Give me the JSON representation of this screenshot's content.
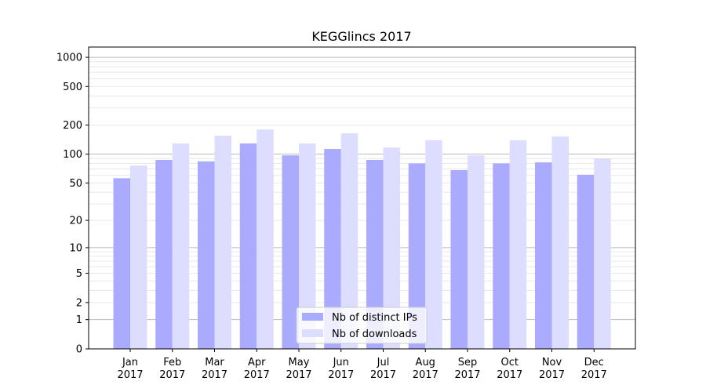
{
  "chart_data": {
    "type": "bar",
    "title": "KEGGlincs 2017",
    "xlabel": "",
    "ylabel": "",
    "y_scale": "log(1+y)",
    "ylim": [
      0,
      1275
    ],
    "y_ticks": [
      0,
      1,
      2,
      5,
      10,
      20,
      50,
      100,
      200,
      500,
      1000
    ],
    "grid": true,
    "legend_position": "bottom-center",
    "categories": [
      "Jan\n2017",
      "Feb\n2017",
      "Mar\n2017",
      "Apr\n2017",
      "May\n2017",
      "Jun\n2017",
      "Jul\n2017",
      "Aug\n2017",
      "Sep\n2017",
      "Oct\n2017",
      "Nov\n2017",
      "Dec\n2017"
    ],
    "category_labels": [
      [
        "Jan",
        "2017"
      ],
      [
        "Feb",
        "2017"
      ],
      [
        "Mar",
        "2017"
      ],
      [
        "Apr",
        "2017"
      ],
      [
        "May",
        "2017"
      ],
      [
        "Jun",
        "2017"
      ],
      [
        "Jul",
        "2017"
      ],
      [
        "Aug",
        "2017"
      ],
      [
        "Sep",
        "2017"
      ],
      [
        "Oct",
        "2017"
      ],
      [
        "Nov",
        "2017"
      ],
      [
        "Dec",
        "2017"
      ]
    ],
    "series": [
      {
        "name": "Nb of distinct IPs",
        "color": "#aaaaff",
        "values": [
          56,
          87,
          84,
          129,
          97,
          113,
          87,
          80,
          68,
          80,
          82,
          61
        ]
      },
      {
        "name": "Nb of downloads",
        "color": "#ddddff",
        "values": [
          76,
          129,
          155,
          180,
          129,
          164,
          117,
          139,
          97,
          139,
          152,
          90
        ]
      }
    ]
  }
}
